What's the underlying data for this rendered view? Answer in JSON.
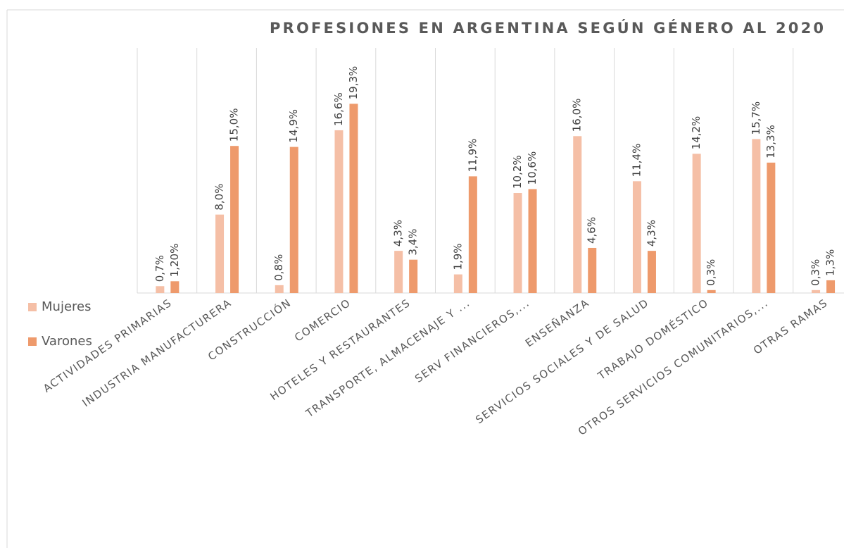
{
  "chart_data": {
    "type": "bar",
    "title": "PROFESIONES EN ARGENTINA SEGÚN GÉNERO AL 2020",
    "categories": [
      "ACTIVIDADES PRIMARIAS",
      "INDUSTRIA MANUFACTURERA",
      "CONSTRUCCIÓN",
      "COMERCIO",
      "HOTELES Y RESTAURANTES",
      "TRANSPORTE, ALMACENAJE Y ...",
      "SERV FINANCIEROS,...",
      "ENSEÑANZA",
      "SERVICIOS SOCIALES Y DE SALUD",
      "TRABAJO DOMÉSTICO",
      "OTROS SERVICIOS COMUNITARIOS,...",
      "OTRAS RAMAS"
    ],
    "series": [
      {
        "name": "Mujeres",
        "color": "#f5bfa6",
        "values": [
          0.7,
          8.0,
          0.8,
          16.6,
          4.3,
          1.9,
          10.2,
          16.0,
          11.4,
          14.2,
          15.7,
          0.3
        ],
        "value_labels": [
          "0,7%",
          "8,0%",
          "0,8%",
          "16,6%",
          "4,3%",
          "1,9%",
          "10,2%",
          "16,0%",
          "11,4%",
          "14,2%",
          "15,7%",
          "0,3%"
        ]
      },
      {
        "name": "Varones",
        "color": "#ee9a6c",
        "values": [
          1.2,
          15.0,
          14.9,
          19.3,
          3.4,
          11.9,
          10.6,
          4.6,
          4.3,
          0.3,
          13.3,
          1.3
        ],
        "value_labels": [
          "1,20%",
          "15,0%",
          "14,9%",
          "19,3%",
          "3,4%",
          "11,9%",
          "10,6%",
          "4,6%",
          "4,3%",
          "0,3%",
          "13,3%",
          "1,3%"
        ]
      }
    ],
    "ylim": [
      0,
      25
    ]
  }
}
